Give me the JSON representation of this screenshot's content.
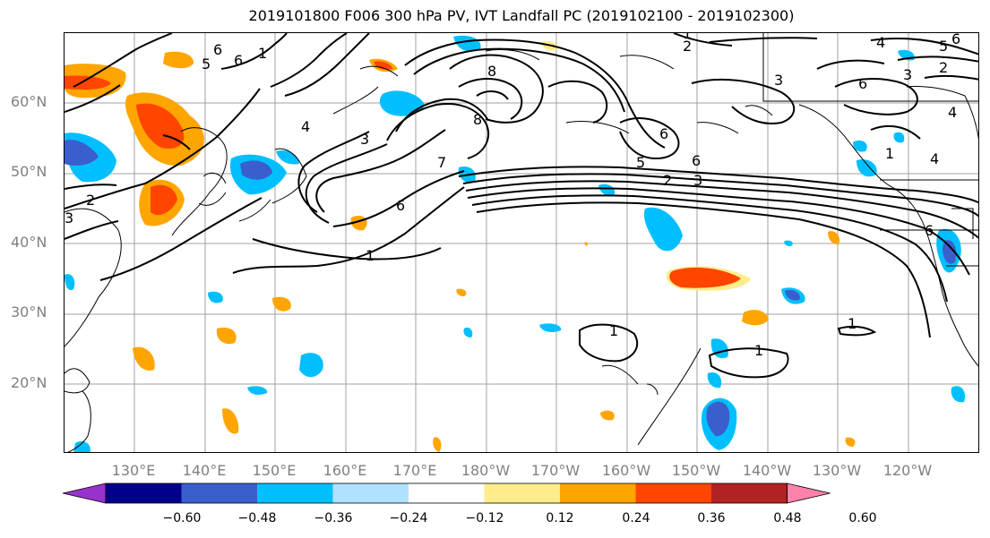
{
  "title": "2019101800 F006 300 hPa PV, IVT Landfall PC (2019102100 - 2019102300)",
  "lat_labels": [
    "60°N",
    "50°N",
    "40°N",
    "30°N",
    "20°N"
  ],
  "lon_labels": [
    "130°E",
    "140°E",
    "150°E",
    "160°E",
    "170°E",
    "180°W",
    "170°W",
    "160°W",
    "150°W",
    "140°W",
    "130°W",
    "120°W"
  ],
  "colorbar": {
    "ticks": [
      "−0.60",
      "−0.48",
      "−0.36",
      "−0.24",
      "−0.12",
      "0.12",
      "0.24",
      "0.36",
      "0.48",
      "0.60"
    ],
    "colors": [
      "#9932cc",
      "#00008b",
      "#3a5fcd",
      "#00bfff",
      "#b0e2ff",
      "#ffffff",
      "#ffec8b",
      "#ffa500",
      "#ff4500",
      "#b22222",
      "#ff82ab"
    ]
  },
  "contour_labels": [
    "6",
    "6",
    "5",
    "1",
    "1",
    "2",
    "3",
    "8",
    "4",
    "3",
    "7",
    "8",
    "6",
    "5",
    "6",
    "2",
    "3",
    "6",
    "2",
    "1",
    "4",
    "6",
    "3",
    "4",
    "5",
    "6",
    "2",
    "3",
    "4",
    "6",
    "1",
    "1",
    "1",
    "1"
  ]
}
